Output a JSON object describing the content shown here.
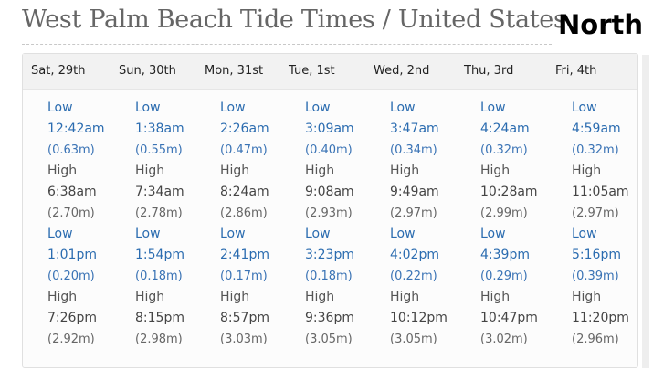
{
  "page": {
    "title": "West Palm Beach Tide Times / United States",
    "overlay_label": "North"
  },
  "days": [
    {
      "label": "Sat, 29th",
      "tides": [
        {
          "type": "Low",
          "time": "12:42am",
          "height": "(0.63m)"
        },
        {
          "type": "High",
          "time": "6:38am",
          "height": "(2.70m)"
        },
        {
          "type": "Low",
          "time": "1:01pm",
          "height": "(0.20m)"
        },
        {
          "type": "High",
          "time": "7:26pm",
          "height": "(2.92m)"
        }
      ]
    },
    {
      "label": "Sun, 30th",
      "tides": [
        {
          "type": "Low",
          "time": "1:38am",
          "height": "(0.55m)"
        },
        {
          "type": "High",
          "time": "7:34am",
          "height": "(2.78m)"
        },
        {
          "type": "Low",
          "time": "1:54pm",
          "height": "(0.18m)"
        },
        {
          "type": "High",
          "time": "8:15pm",
          "height": "(2.98m)"
        }
      ]
    },
    {
      "label": "Mon, 31st",
      "tides": [
        {
          "type": "Low",
          "time": "2:26am",
          "height": "(0.47m)"
        },
        {
          "type": "High",
          "time": "8:24am",
          "height": "(2.86m)"
        },
        {
          "type": "Low",
          "time": "2:41pm",
          "height": "(0.17m)"
        },
        {
          "type": "High",
          "time": "8:57pm",
          "height": "(3.03m)"
        }
      ]
    },
    {
      "label": "Tue, 1st",
      "tides": [
        {
          "type": "Low",
          "time": "3:09am",
          "height": "(0.40m)"
        },
        {
          "type": "High",
          "time": "9:08am",
          "height": "(2.93m)"
        },
        {
          "type": "Low",
          "time": "3:23pm",
          "height": "(0.18m)"
        },
        {
          "type": "High",
          "time": "9:36pm",
          "height": "(3.05m)"
        }
      ]
    },
    {
      "label": "Wed, 2nd",
      "tides": [
        {
          "type": "Low",
          "time": "3:47am",
          "height": "(0.34m)"
        },
        {
          "type": "High",
          "time": "9:49am",
          "height": "(2.97m)"
        },
        {
          "type": "Low",
          "time": "4:02pm",
          "height": "(0.22m)"
        },
        {
          "type": "High",
          "time": "10:12pm",
          "height": "(3.05m)"
        }
      ]
    },
    {
      "label": "Thu, 3rd",
      "tides": [
        {
          "type": "Low",
          "time": "4:24am",
          "height": "(0.32m)"
        },
        {
          "type": "High",
          "time": "10:28am",
          "height": "(2.99m)"
        },
        {
          "type": "Low",
          "time": "4:39pm",
          "height": "(0.29m)"
        },
        {
          "type": "High",
          "time": "10:47pm",
          "height": "(3.02m)"
        }
      ]
    },
    {
      "label": "Fri, 4th",
      "tides": [
        {
          "type": "Low",
          "time": "4:59am",
          "height": "(0.32m)"
        },
        {
          "type": "High",
          "time": "11:05am",
          "height": "(2.97m)"
        },
        {
          "type": "Low",
          "time": "5:16pm",
          "height": "(0.39m)"
        },
        {
          "type": "High",
          "time": "11:20pm",
          "height": "(2.96m)"
        }
      ]
    }
  ],
  "colors": {
    "low": "#2b6cb0",
    "high": "#444444",
    "title": "#666666"
  }
}
